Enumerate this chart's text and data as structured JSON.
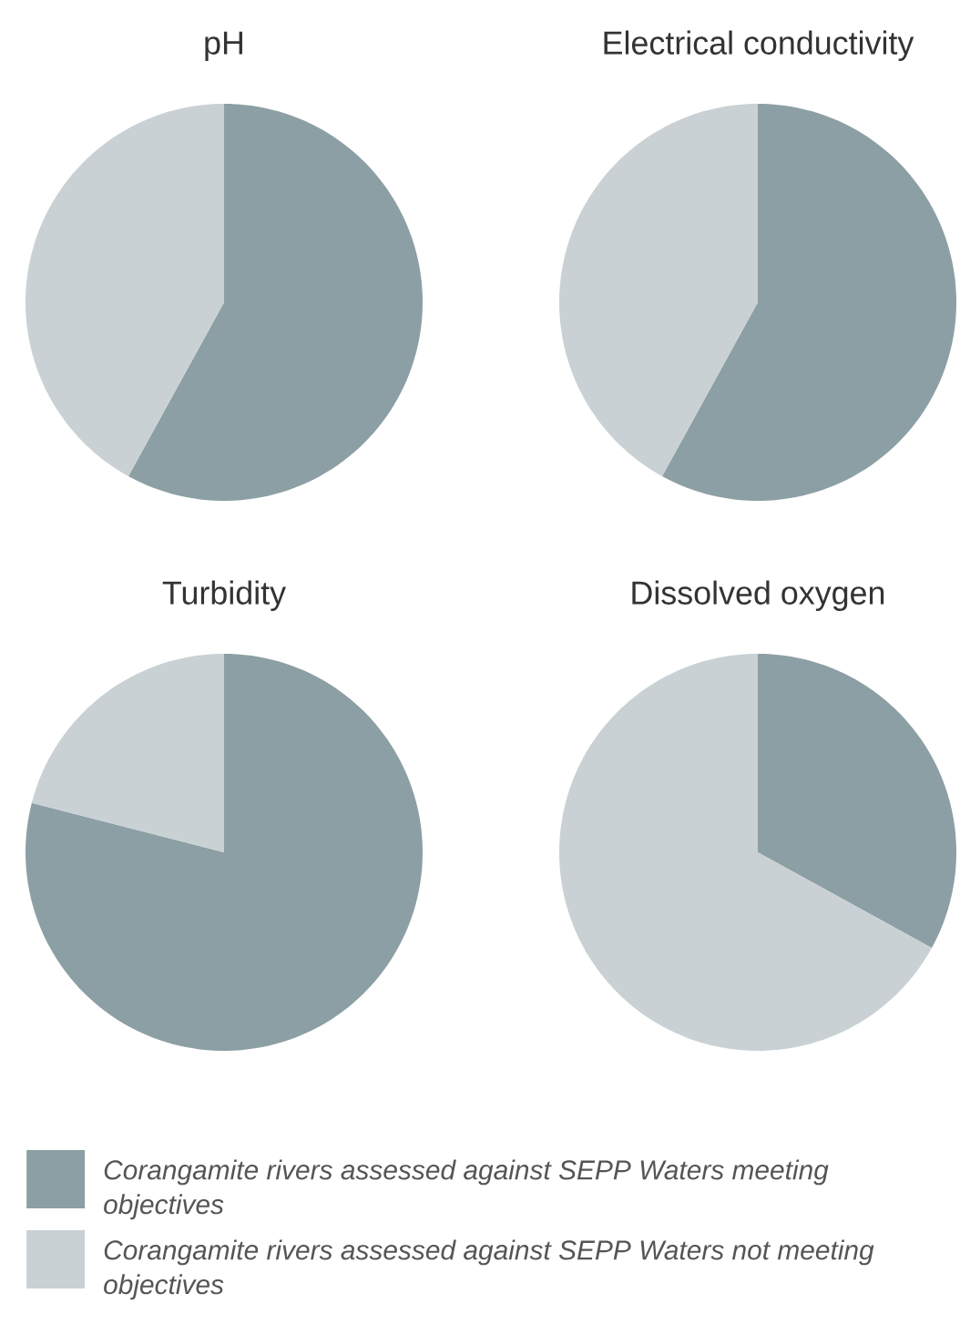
{
  "chart_data": [
    {
      "type": "pie",
      "title": "pH",
      "categories": [
        null,
        null
      ],
      "values": [
        58,
        42
      ],
      "colors": [
        "#8c9fa4",
        "#c9d1d4"
      ]
    },
    {
      "type": "pie",
      "title": "Electrical conductivity",
      "categories": [
        null,
        null
      ],
      "values": [
        58,
        42
      ],
      "colors": [
        "#8c9fa4",
        "#c9d1d4"
      ]
    },
    {
      "type": "pie",
      "title": "Turbidity",
      "categories": [
        null,
        null
      ],
      "values": [
        79,
        21
      ],
      "colors": [
        "#8c9fa4",
        "#c9d1d4"
      ]
    },
    {
      "type": "pie",
      "title": "Dissolved oxygen",
      "categories": [
        "Corangamite rivers assessed against SEPP Waters meeting objectives",
        "Corangamite rivers assessed against SEPP Waters not meeting objectives"
      ],
      "values": [
        33,
        67
      ],
      "colors": [
        "#8c9fa4",
        "#c9d1d4"
      ],
      "legend": "bottom"
    }
  ]
}
